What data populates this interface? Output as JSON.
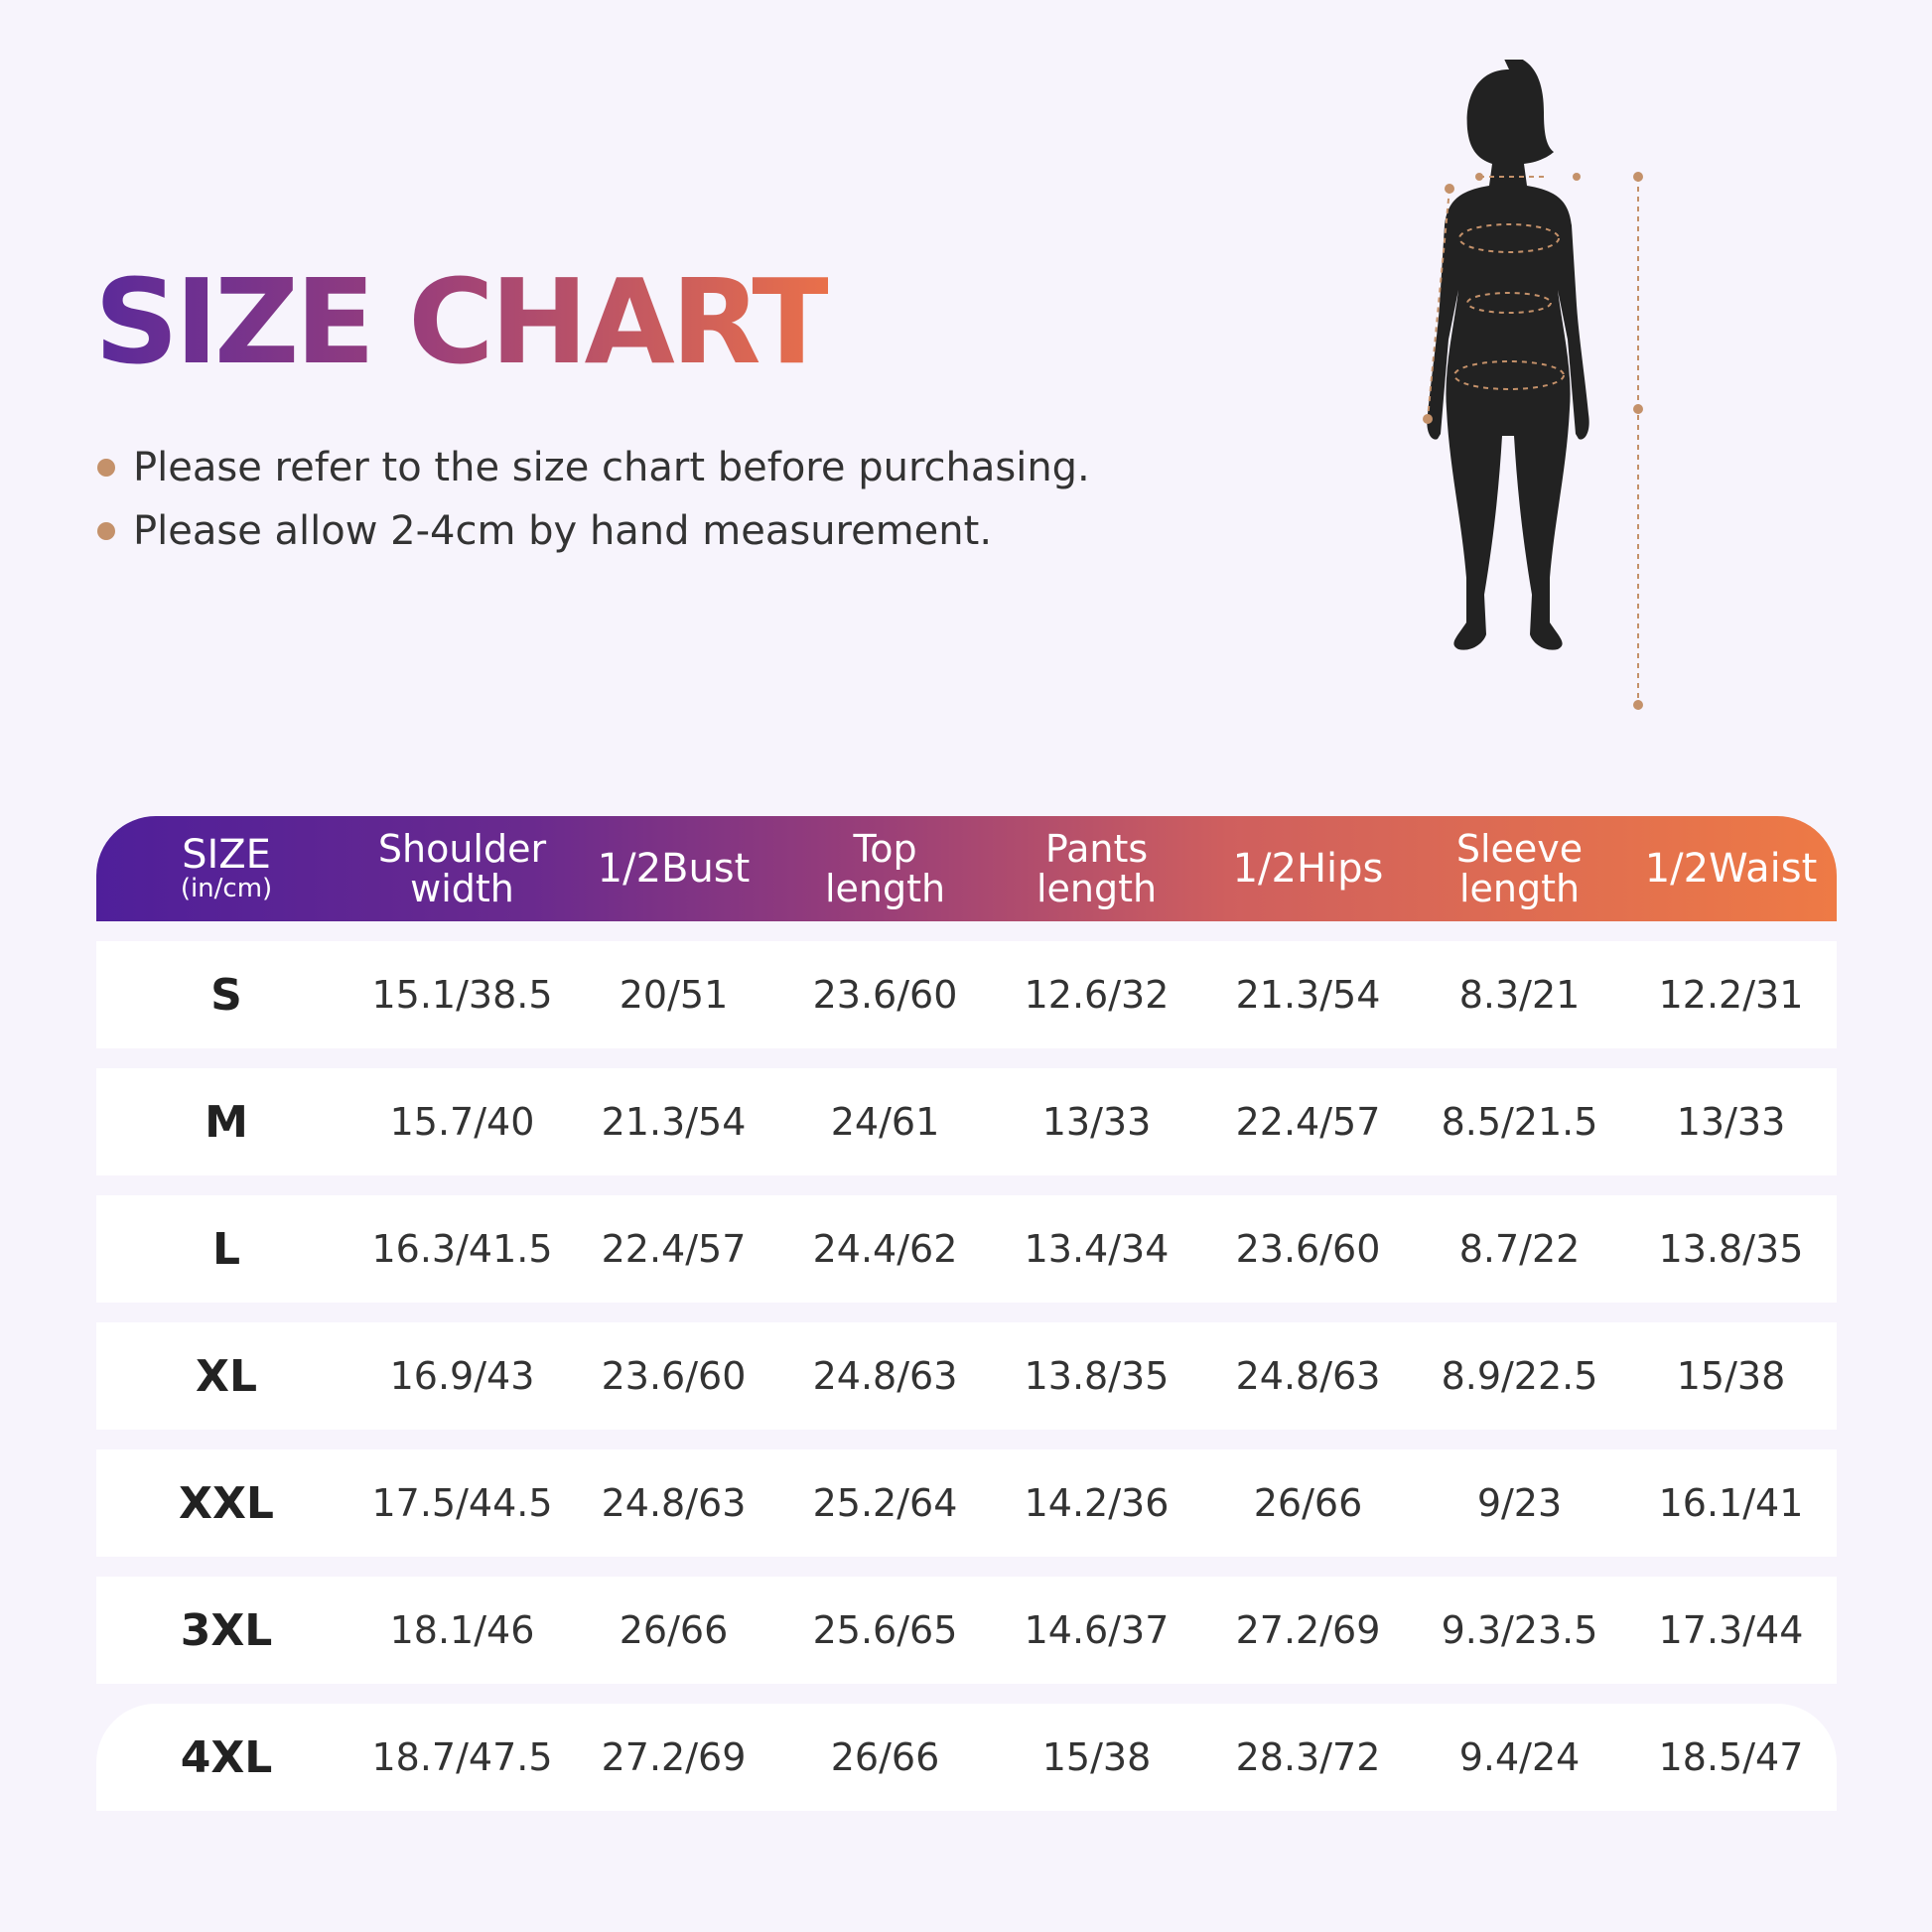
{
  "title": "SIZE CHART",
  "notes": [
    "Please refer to the size chart before purchasing.",
    "Please allow 2-4cm by hand measurement."
  ],
  "colors": {
    "gradient_start": "#4f1f9a",
    "gradient_end": "#ee7a45",
    "bullet": "#c4916a",
    "background": "#f7f4fc"
  },
  "figure": {
    "icon": "female-body-silhouette-with-measurement-lines"
  },
  "table": {
    "headers": [
      {
        "l1": "SIZE",
        "l2": "(in/cm)"
      },
      {
        "l1": "Shoulder",
        "l2": "width"
      },
      {
        "l1": "1/2Bust",
        "l2": ""
      },
      {
        "l1": "Top",
        "l2": "length"
      },
      {
        "l1": "Pants",
        "l2": "length"
      },
      {
        "l1": "1/2Hips",
        "l2": ""
      },
      {
        "l1": "Sleeve",
        "l2": "length"
      },
      {
        "l1": "1/2Waist",
        "l2": ""
      }
    ],
    "rows": [
      [
        "S",
        "15.1/38.5",
        "20/51",
        "23.6/60",
        "12.6/32",
        "21.3/54",
        "8.3/21",
        "12.2/31"
      ],
      [
        "M",
        "15.7/40",
        "21.3/54",
        "24/61",
        "13/33",
        "22.4/57",
        "8.5/21.5",
        "13/33"
      ],
      [
        "L",
        "16.3/41.5",
        "22.4/57",
        "24.4/62",
        "13.4/34",
        "23.6/60",
        "8.7/22",
        "13.8/35"
      ],
      [
        "XL",
        "16.9/43",
        "23.6/60",
        "24.8/63",
        "13.8/35",
        "24.8/63",
        "8.9/22.5",
        "15/38"
      ],
      [
        "XXL",
        "17.5/44.5",
        "24.8/63",
        "25.2/64",
        "14.2/36",
        "26/66",
        "9/23",
        "16.1/41"
      ],
      [
        "3XL",
        "18.1/46",
        "26/66",
        "25.6/65",
        "14.6/37",
        "27.2/69",
        "9.3/23.5",
        "17.3/44"
      ],
      [
        "4XL",
        "18.7/47.5",
        "27.2/69",
        "26/66",
        "15/38",
        "28.3/72",
        "9.4/24",
        "18.5/47"
      ]
    ]
  }
}
